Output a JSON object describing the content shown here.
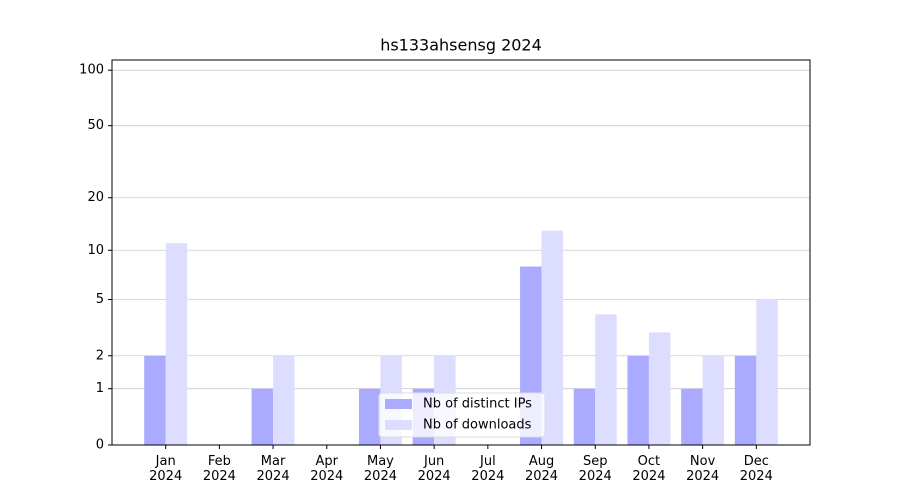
{
  "chart_data": {
    "type": "bar",
    "title": "hs133ahsensg 2024",
    "categories": [
      "Jan 2024",
      "Feb 2024",
      "Mar 2024",
      "Apr 2024",
      "May 2024",
      "Jun 2024",
      "Jul 2024",
      "Aug 2024",
      "Sep 2024",
      "Oct 2024",
      "Nov 2024",
      "Dec 2024"
    ],
    "series": [
      {
        "name": "Nb of distinct IPs",
        "color": "#aaaaff",
        "values": [
          2,
          0,
          1,
          0,
          1,
          1,
          0,
          8,
          1,
          2,
          1,
          2
        ]
      },
      {
        "name": "Nb of downloads",
        "color": "#ddddff",
        "values": [
          11,
          0,
          2,
          0,
          2,
          2,
          0,
          13,
          4,
          3,
          2,
          5
        ]
      }
    ],
    "yscale": "log1p",
    "ylim": [
      0,
      113.5
    ],
    "yticks": [
      0,
      1,
      2,
      5,
      10,
      20,
      50,
      100
    ],
    "grid": true,
    "legend": "lower center"
  }
}
